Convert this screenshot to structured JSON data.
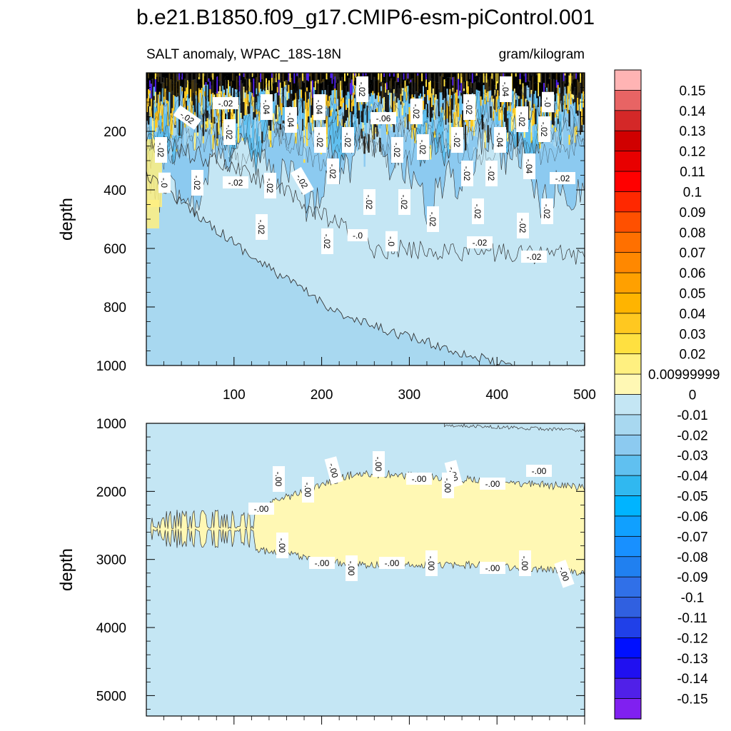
{
  "chart_data": {
    "type": "contour",
    "title": "b.e21.B1850.f09_g17.CMIP6-esm-piControl.001",
    "left_subtitle": "SALT anomaly, WPAC_18S-18N",
    "right_subtitle": "gram/kilogram",
    "ylabel": "depth",
    "x_range": [
      0,
      500
    ],
    "x_ticks": [
      "100",
      "200",
      "300",
      "400",
      "500"
    ],
    "upper_panel": {
      "y_range": [
        0,
        1000
      ],
      "y_ticks": [
        "200",
        "400",
        "600",
        "800",
        "1000"
      ],
      "contour_labels": [
        "-.02",
        "-.02",
        "-.04",
        "-.04",
        "-.04",
        "-.02",
        "-.04",
        "-.0",
        "-.02",
        "-.0",
        "-.02",
        "-.02",
        "-.02",
        "-.02",
        "-.02",
        "-.02",
        "-.02",
        "-.02",
        "-.04",
        "-.02",
        "-.02",
        "-.02",
        "-.06",
        "-.02",
        "-.02",
        "-.02",
        "-.02",
        "-.02",
        "-.02",
        "-.02",
        "-.02",
        "-.02",
        "-.02",
        "-.02",
        "-.02",
        "-.02",
        "-.04",
        "-.02",
        "-.02",
        "-.0",
        "-.0",
        "-.02",
        "-.02"
      ]
    },
    "lower_panel": {
      "y_range": [
        1000,
        5300
      ],
      "y_ticks": [
        "1000",
        "2000",
        "3000",
        "4000",
        "5000"
      ],
      "contour_labels": [
        "-.00",
        "-.00",
        "-.00",
        "-.00",
        "-.00",
        "-.00",
        "-.00",
        "-.00",
        "-.00",
        "-.00",
        "-.00",
        "-.00",
        "-.00",
        "-.00",
        "-.00",
        "-.00",
        "-.00",
        "-.00"
      ]
    },
    "colorbar": {
      "levels": [
        "0.15",
        "0.14",
        "0.13",
        "0.12",
        "0.11",
        "0.1",
        "0.09",
        "0.08",
        "0.07",
        "0.06",
        "0.05",
        "0.04",
        "0.03",
        "0.02",
        "0.00999999",
        "0",
        "-0.01",
        "-0.02",
        "-0.03",
        "-0.04",
        "-0.05",
        "-0.06",
        "-0.07",
        "-0.08",
        "-0.09",
        "-0.1",
        "-0.11",
        "-0.12",
        "-0.13",
        "-0.14",
        "-0.15"
      ],
      "colors": [
        "#ffb4b4",
        "#e86464",
        "#d42828",
        "#d00000",
        "#e80000",
        "#ff0000",
        "#ff2800",
        "#ff5000",
        "#ff7000",
        "#ff8800",
        "#ffa000",
        "#ffb400",
        "#ffc820",
        "#ffe040",
        "#fff080",
        "#fff8b4",
        "#c4e6f4",
        "#a8d8f0",
        "#8ccaf0",
        "#60c0f0",
        "#30b8f0",
        "#00b4ff",
        "#10a0ff",
        "#1890ff",
        "#2080f0",
        "#3070e8",
        "#3060e0",
        "#2040e8",
        "#0010ff",
        "#2010f0",
        "#5020e8",
        "#8020f0"
      ]
    }
  }
}
